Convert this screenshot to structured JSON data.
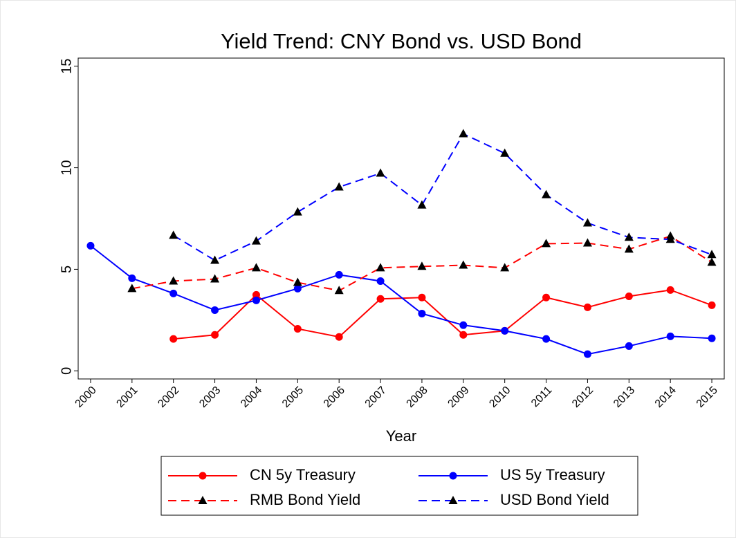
{
  "chart_data": {
    "type": "line",
    "title": "Yield Trend: CNY Bond vs. USD Bond",
    "x_label": "Year",
    "x": [
      2000,
      2001,
      2002,
      2003,
      2004,
      2005,
      2006,
      2007,
      2008,
      2009,
      2010,
      2011,
      2012,
      2013,
      2014,
      2015
    ],
    "xlim": [
      1999.7,
      2015.3
    ],
    "xticks": [
      2000,
      2001,
      2002,
      2003,
      2004,
      2005,
      2006,
      2007,
      2008,
      2009,
      2010,
      2011,
      2012,
      2013,
      2014,
      2015
    ],
    "ylim": [
      -0.4,
      15.4
    ],
    "yticks": [
      0,
      5,
      10,
      15
    ],
    "legend_position": "bottom",
    "series": [
      {
        "name": "CN 5y Treasury",
        "color": "#ff0000",
        "line_style": "solid",
        "marker": "circle",
        "values": [
          null,
          null,
          1.57,
          1.77,
          3.74,
          2.07,
          1.67,
          3.54,
          3.61,
          1.77,
          1.97,
          3.61,
          3.13,
          3.67,
          3.98,
          3.23
        ]
      },
      {
        "name": "US 5y Treasury",
        "color": "#0000ff",
        "line_style": "solid",
        "marker": "circle",
        "values": [
          6.16,
          4.56,
          3.81,
          2.99,
          3.47,
          4.05,
          4.73,
          4.42,
          2.82,
          2.25,
          1.97,
          1.57,
          0.82,
          1.22,
          1.7,
          1.6
        ]
      },
      {
        "name": "RMB Bond Yield",
        "color": "#ff0000",
        "line_style": "dashed",
        "marker": "triangle",
        "values": [
          null,
          4.05,
          4.42,
          4.52,
          5.07,
          4.35,
          3.95,
          5.07,
          5.14,
          5.2,
          5.07,
          6.26,
          6.29,
          5.99,
          6.63,
          5.34
        ]
      },
      {
        "name": "USD Bond Yield",
        "color": "#0000ff",
        "line_style": "dashed",
        "marker": "triangle",
        "values": [
          null,
          null,
          6.67,
          5.44,
          6.39,
          7.82,
          9.05,
          9.73,
          8.16,
          11.67,
          10.71,
          8.67,
          7.28,
          6.57,
          6.47,
          5.72
        ]
      }
    ]
  }
}
